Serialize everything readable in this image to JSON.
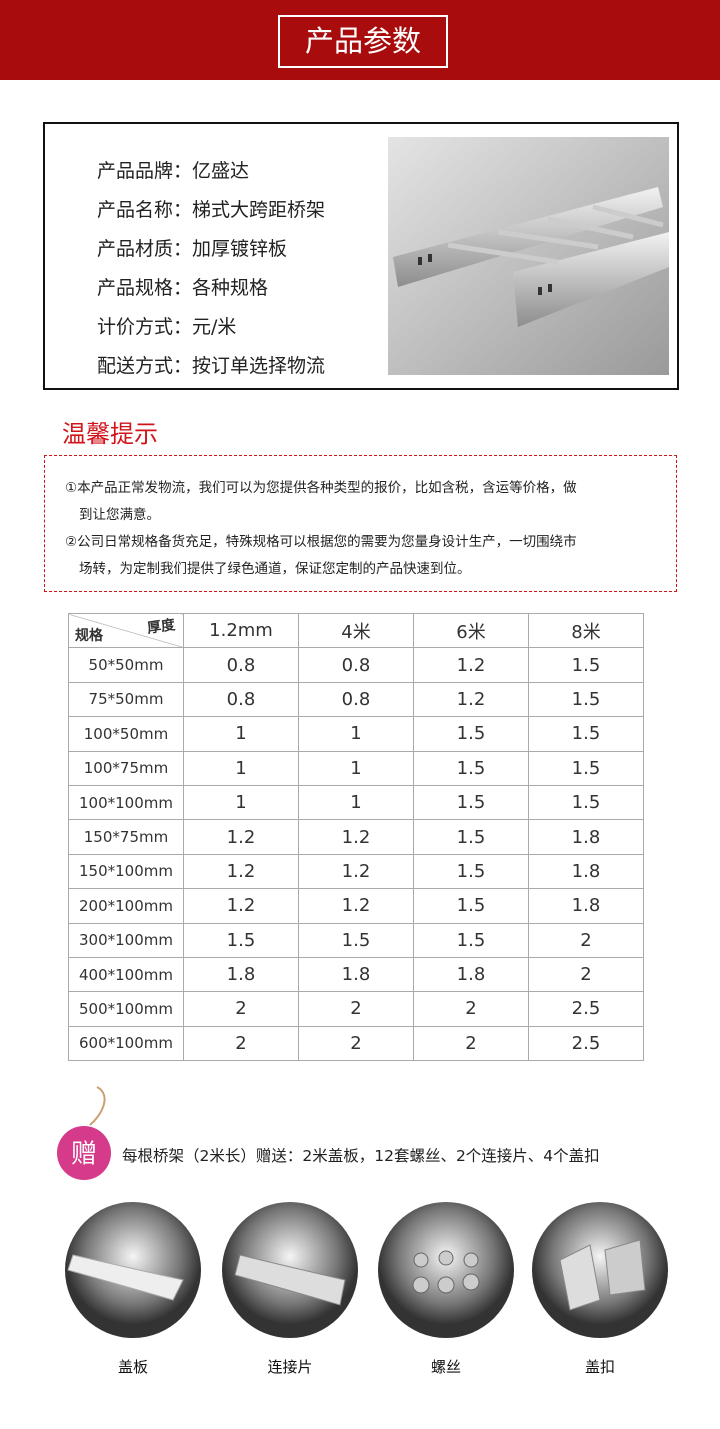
{
  "header": {
    "title": "产品参数"
  },
  "info": {
    "rows": [
      {
        "label": "产品品牌：",
        "value": "亿盛达"
      },
      {
        "label": "产品名称：",
        "value": "梯式大跨距桥架"
      },
      {
        "label": "产品材质：",
        "value": "加厚镀锌板"
      },
      {
        "label": "产品规格：",
        "value": "各种规格"
      },
      {
        "label": "计价方式：",
        "value": "元/米"
      },
      {
        "label": "配送方式：",
        "value": "按订单选择物流"
      }
    ]
  },
  "tips": {
    "title": "温馨提示",
    "lines": [
      "①本产品正常发物流，我们可以为您提供各种类型的报价，比如含税，含运等价格，做",
      "到让您满意。",
      "②公司日常规格备货充足，特殊规格可以根据您的需要为您量身设计生产，一切围绕市",
      "场转，为定制我们提供了绿色通道，保证您定制的产品快速到位。"
    ]
  },
  "table": {
    "corner_top": "厚度",
    "corner_bottom": "规格",
    "columns": [
      "1.2mm",
      "4米",
      "6米",
      "8米"
    ],
    "rows": [
      [
        "50*50mm",
        "0.8",
        "0.8",
        "1.2",
        "1.5"
      ],
      [
        "75*50mm",
        "0.8",
        "0.8",
        "1.2",
        "1.5"
      ],
      [
        "100*50mm",
        "1",
        "1",
        "1.5",
        "1.5"
      ],
      [
        "100*75mm",
        "1",
        "1",
        "1.5",
        "1.5"
      ],
      [
        "100*100mm",
        "1",
        "1",
        "1.5",
        "1.5"
      ],
      [
        "150*75mm",
        "1.2",
        "1.2",
        "1.5",
        "1.8"
      ],
      [
        "150*100mm",
        "1.2",
        "1.2",
        "1.5",
        "1.8"
      ],
      [
        "200*100mm",
        "1.2",
        "1.2",
        "1.5",
        "1.8"
      ],
      [
        "300*100mm",
        "1.5",
        "1.5",
        "1.5",
        "2"
      ],
      [
        "400*100mm",
        "1.8",
        "1.8",
        "1.8",
        "2"
      ],
      [
        "500*100mm",
        "2",
        "2",
        "2",
        "2.5"
      ],
      [
        "600*100mm",
        "2",
        "2",
        "2",
        "2.5"
      ]
    ]
  },
  "gift": {
    "badge": "赠",
    "text": "每根桥架（2米长）赠送：2米盖板，12套螺丝、2个连接片、4个盖扣"
  },
  "items": [
    "盖板",
    "连接片",
    "螺丝",
    "盖扣"
  ]
}
